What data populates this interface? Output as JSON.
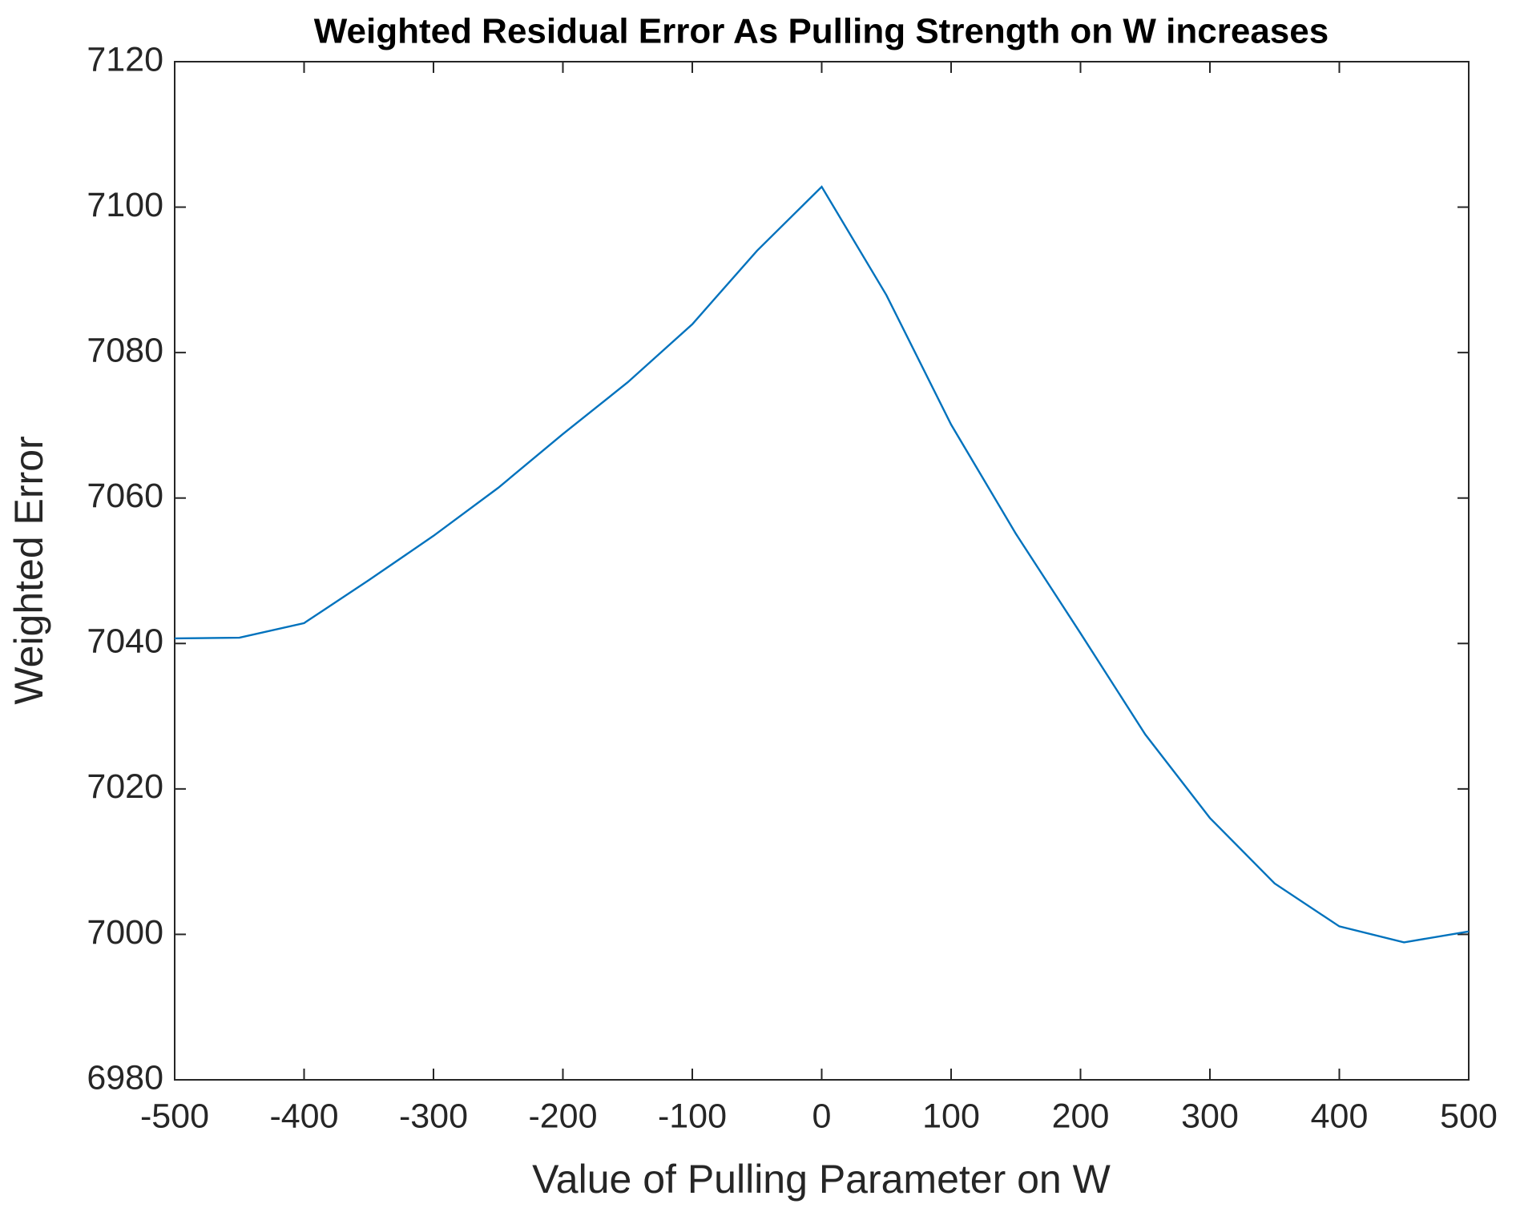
{
  "chart_data": {
    "type": "line",
    "title": "Weighted Residual Error As Pulling Strength on W increases",
    "x_label": "Value of Pulling Parameter on W",
    "y_label": "Weighted Error",
    "x": [
      -500,
      -450,
      -400,
      -350,
      -300,
      -250,
      -200,
      -150,
      -100,
      -50,
      0,
      50,
      100,
      150,
      200,
      250,
      300,
      350,
      400,
      450,
      500
    ],
    "series": [
      {
        "color": "#0072bd",
        "values": [
          7040.7,
          7040.8,
          7042.8,
          7048.7,
          7054.8,
          7061.4,
          7068.8,
          7075.9,
          7083.9,
          7094.0,
          7102.8,
          7087.9,
          7070.1,
          7055.1,
          7041.4,
          7027.5,
          7016.0,
          7007.0,
          7001.1,
          6998.9,
          7000.4
        ]
      }
    ],
    "xlim": [
      -500,
      500
    ],
    "xticks": [
      -500,
      -400,
      -300,
      -200,
      -100,
      0,
      100,
      200,
      300,
      400,
      500
    ],
    "ylim": [
      6980,
      7120
    ],
    "yticks": [
      6980,
      7000,
      7020,
      7040,
      7060,
      7080,
      7100,
      7120
    ],
    "grid": false
  }
}
